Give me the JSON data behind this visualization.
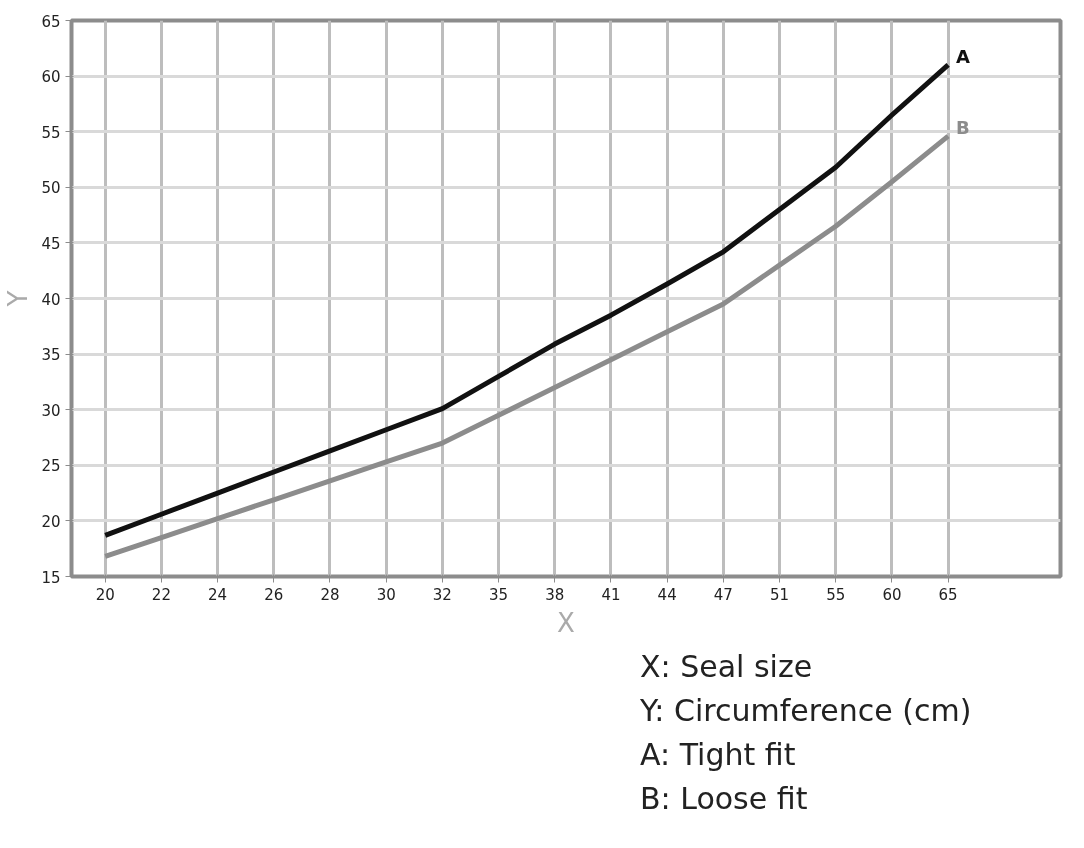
{
  "chart_data": {
    "type": "line",
    "xlabel": "X",
    "ylabel": "Y",
    "categories": [
      "20",
      "22",
      "24",
      "26",
      "28",
      "30",
      "32",
      "35",
      "38",
      "41",
      "44",
      "47",
      "51",
      "55",
      "60",
      "65"
    ],
    "series": [
      {
        "name": "A",
        "color": "#111111",
        "values": [
          18.7,
          20.6,
          22.5,
          24.4,
          26.3,
          28.2,
          30.1,
          33,
          35.9,
          38.5,
          41.3,
          44.2,
          48,
          51.8,
          56.5,
          61
        ]
      },
      {
        "name": "B",
        "color": "#8c8c8c",
        "values": [
          16.8,
          18.5,
          20.2,
          21.9,
          23.6,
          25.3,
          27,
          29.5,
          32,
          34.5,
          37,
          39.5,
          43,
          46.5,
          50.5,
          54.6
        ]
      }
    ],
    "ylim": [
      15,
      65
    ],
    "yticks": [
      15,
      20,
      25,
      30,
      35,
      40,
      45,
      50,
      55,
      60,
      65
    ],
    "grid": true,
    "marker": "none",
    "line_style": "solid",
    "annotations": [
      "X: Seal size",
      "Y: Circumference (cm)",
      "A: Tight fit",
      "B: Loose fit"
    ]
  }
}
